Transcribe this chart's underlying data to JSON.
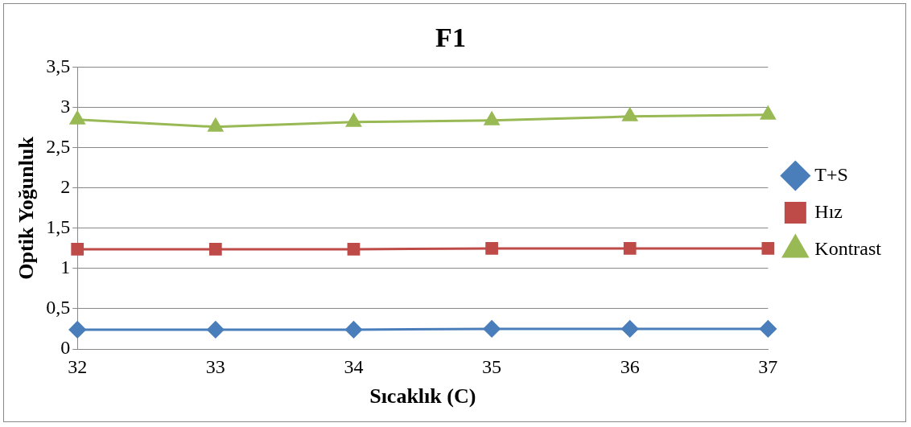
{
  "chart_data": {
    "type": "line",
    "title": "F1",
    "xlabel": "Sıcaklık (C)",
    "ylabel": "Optik Yoğunluk",
    "categories": [
      "32",
      "33",
      "34",
      "35",
      "36",
      "37"
    ],
    "series": [
      {
        "name": "T+S",
        "color": "#4a7ebb",
        "marker": "diamond",
        "values": [
          0.24,
          0.24,
          0.24,
          0.25,
          0.25,
          0.25
        ]
      },
      {
        "name": "Hız",
        "color": "#be4b48",
        "marker": "square",
        "values": [
          1.24,
          1.24,
          1.24,
          1.25,
          1.25,
          1.25
        ]
      },
      {
        "name": "Kontrast",
        "color": "#98b954",
        "marker": "triangle",
        "values": [
          2.85,
          2.76,
          2.82,
          2.84,
          2.89,
          2.91
        ]
      }
    ],
    "ylim": [
      0,
      3.5
    ],
    "yticks": [
      0,
      {
        "value": 0.5,
        "label": "0,5"
      },
      1,
      {
        "value": 1.5,
        "label": "1,5"
      },
      2,
      {
        "value": 2.5,
        "label": "2,5"
      },
      3,
      {
        "value": 3.5,
        "label": "3,5"
      }
    ],
    "grid": "y",
    "legend": "right"
  }
}
